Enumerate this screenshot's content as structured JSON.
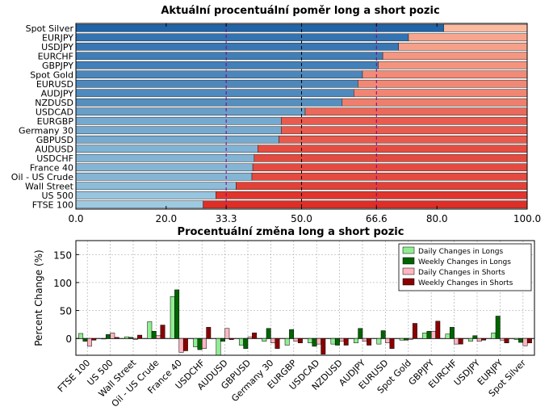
{
  "chart_data": [
    {
      "type": "bar",
      "orientation": "horizontal",
      "stacked": true,
      "title": "Aktuální procentuální poměr long a short pozic",
      "categories": [
        "FTSE 100",
        "US 500",
        "Wall Street",
        "Oil - US Crude",
        "France 40",
        "USDCHF",
        "AUDUSD",
        "GBPUSD",
        "Germany 30",
        "EURGBP",
        "USDCAD",
        "NZDUSD",
        "AUDJPY",
        "EURUSD",
        "Spot Gold",
        "GBPJPY",
        "EURCHF",
        "USDJPY",
        "EURJPY",
        "Spot Silver"
      ],
      "series": [
        {
          "values": [
            28.2,
            31.0,
            35.5,
            39.0,
            39.2,
            39.5,
            40.3,
            45.0,
            45.5,
            45.5,
            50.8,
            59.0,
            61.6,
            62.5,
            63.5,
            67.0,
            68.0,
            71.5,
            73.7,
            81.5
          ]
        },
        {
          "values": [
            71.8,
            69.0,
            64.5,
            61.0,
            60.8,
            60.5,
            59.7,
            55.0,
            54.5,
            54.5,
            49.2,
            41.0,
            38.4,
            37.5,
            36.5,
            33.0,
            32.0,
            28.5,
            26.3,
            18.5
          ]
        }
      ],
      "xlim": [
        0,
        100
      ],
      "xticks": [
        "0.0",
        "20.0",
        "33.3",
        "50.0",
        "66.6",
        "80.0",
        "100.0"
      ],
      "reference_lines": [
        33.3,
        50.0,
        66.6
      ],
      "colors": {
        "reference_33": "#800080",
        "reference_50": "#000000",
        "reference_66": "#800080",
        "long_dark": "#1f63a8",
        "short_light": "#fcbba1",
        "long_light": "#9ecae1",
        "short_dark": "#de2d26"
      }
    },
    {
      "type": "bar",
      "title": "Procentuální změna long a short pozic",
      "ylabel": "Percent Change (%)",
      "categories": [
        "FTSE 100",
        "US 500",
        "Wall Street",
        "Oil - US Crude",
        "France 40",
        "USDCHF",
        "AUDUSD",
        "GBPUSD",
        "Germany 30",
        "EURGBP",
        "USDCAD",
        "NZDUSD",
        "AUDJPY",
        "EURUSD",
        "Spot Gold",
        "GBPJPY",
        "EURCHF",
        "USDJPY",
        "EURJPY",
        "Spot Silver"
      ],
      "series": [
        {
          "name": "Daily Changes in Longs",
          "values": [
            9,
            -1,
            3,
            30,
            75,
            -15,
            -30,
            -12,
            -5,
            -12,
            -8,
            -10,
            -8,
            -10,
            -3,
            10,
            8,
            -5,
            10,
            -2
          ]
        },
        {
          "name": "Weekly Changes in Longs",
          "values": [
            -5,
            7,
            2,
            13,
            87,
            -20,
            -5,
            -18,
            18,
            16,
            -14,
            -12,
            18,
            14,
            -3,
            13,
            20,
            5,
            40,
            -7
          ]
        },
        {
          "name": "Daily Changes in Shorts",
          "values": [
            -14,
            10,
            -2,
            5,
            -25,
            -18,
            18,
            3,
            -8,
            -5,
            -10,
            -5,
            -5,
            -8,
            -2,
            13,
            -10,
            -5,
            -3,
            -13
          ]
        },
        {
          "name": "Weekly Changes in Shorts",
          "values": [
            -3,
            2,
            6,
            24,
            -22,
            20,
            -2,
            10,
            -18,
            -8,
            -28,
            -12,
            -12,
            -18,
            27,
            31,
            -10,
            -3,
            -8,
            -8
          ]
        }
      ],
      "ylim": [
        -30,
        175
      ],
      "yticks": [
        "0",
        "50",
        "100",
        "150"
      ],
      "grid": true,
      "legend_position": "top-right",
      "colors": {
        "daily_longs": "#90ee90",
        "weekly_longs": "#006400",
        "daily_shorts": "#ffb6c1",
        "weekly_shorts": "#8b0000"
      }
    }
  ]
}
